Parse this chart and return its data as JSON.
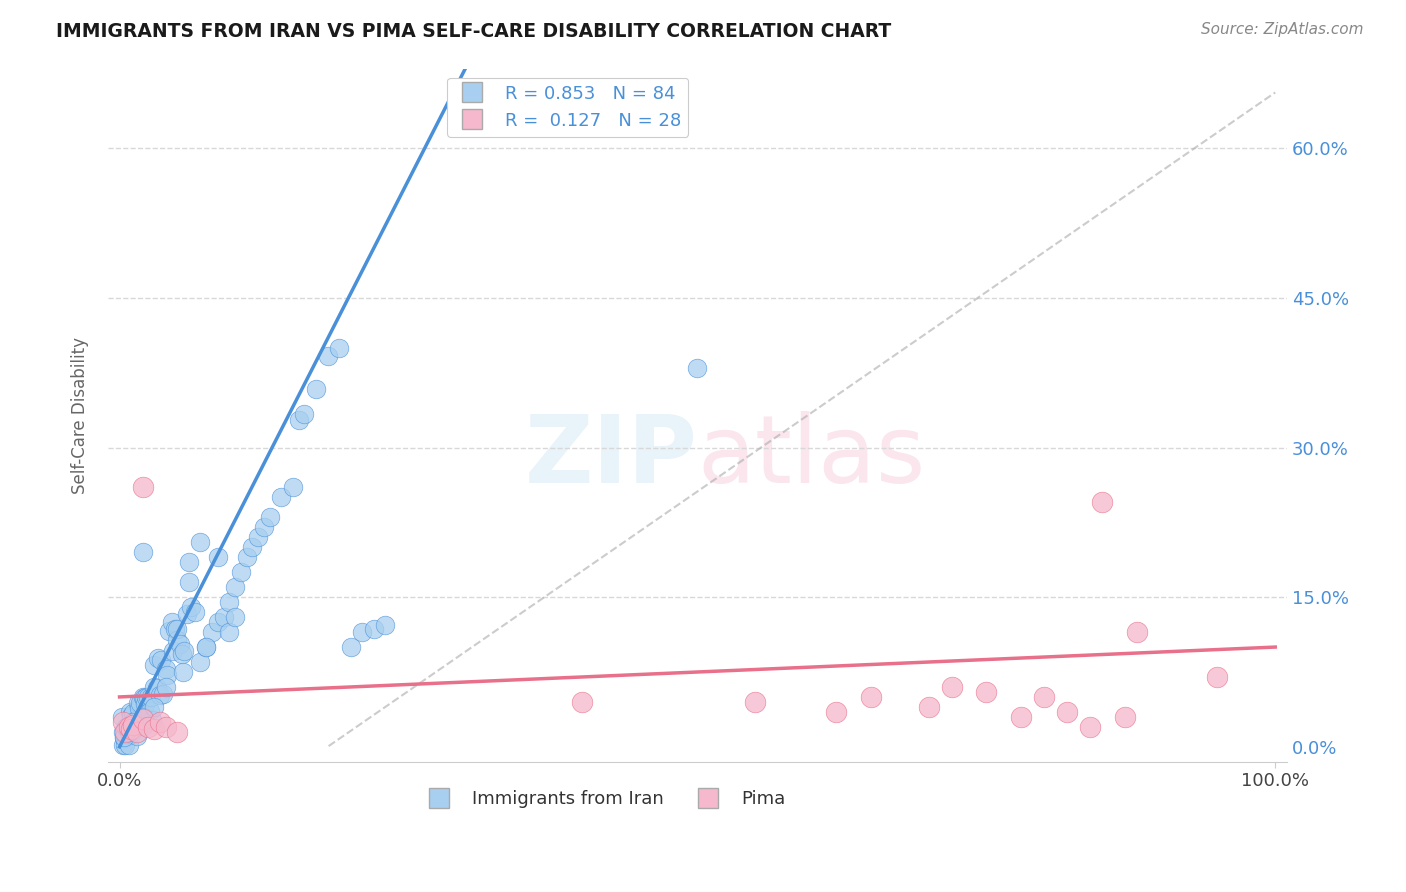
{
  "title": "IMMIGRANTS FROM IRAN VS PIMA SELF-CARE DISABILITY CORRELATION CHART",
  "source_text": "Source: ZipAtlas.com",
  "ylabel": "Self-Care Disability",
  "xlim": [
    0,
    100
  ],
  "ylim": [
    0,
    67
  ],
  "background_color": "#ffffff",
  "grid_color": "#d8d8d8",
  "watermark": "ZIPatlas",
  "blue_color": "#a8cff0",
  "pink_color": "#f5b8cc",
  "blue_line_color": "#4a90d9",
  "pink_line_color": "#e8708a",
  "legend_blue_label": "Immigrants from Iran",
  "legend_pink_label": "Pima",
  "R_blue": 0.853,
  "N_blue": 84,
  "R_pink": 0.127,
  "N_pink": 28,
  "blue_trend_x0": 0,
  "blue_trend_y0": 0,
  "blue_trend_x1": 22,
  "blue_trend_y1": 50,
  "pink_trend_x0": 0,
  "pink_trend_y0": 5,
  "pink_trend_x1": 100,
  "pink_trend_y1": 10,
  "diag_x0": 20,
  "diag_y0": 0,
  "diag_x1": 100,
  "diag_y1": 62
}
